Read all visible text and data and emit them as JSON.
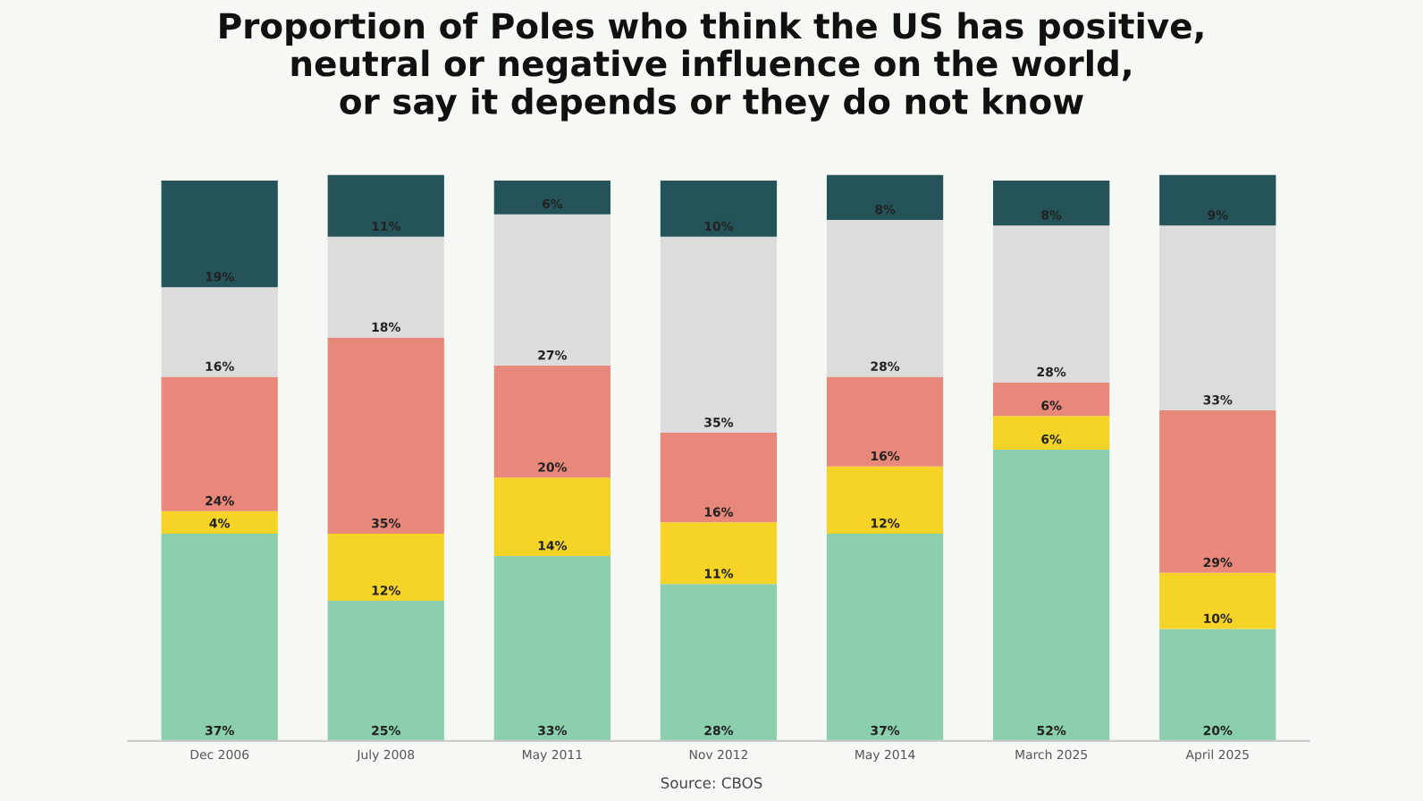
{
  "chart_data": {
    "type": "bar",
    "stacked": true,
    "title": "Proportion of Poles who think the US has positive,\nneutral or negative influence on the world,\nor say it depends or they do not know",
    "categories": [
      "Dec 2006",
      "July 2008",
      "May 2011",
      "Nov 2012",
      "May 2014",
      "March 2025",
      "April 2025"
    ],
    "series": [
      {
        "color": "#8ccfae",
        "values": [
          37,
          25,
          33,
          28,
          37,
          52,
          20
        ],
        "value_labels": [
          "37%",
          "25%",
          "33%",
          "28%",
          "37%",
          "52%",
          "20%"
        ]
      },
      {
        "color": "#f5d327",
        "values": [
          4,
          12,
          14,
          11,
          12,
          6,
          10
        ],
        "value_labels": [
          "4%",
          "12%",
          "14%",
          "11%",
          "12%",
          "6%",
          "10%"
        ]
      },
      {
        "color": "#e8887a",
        "values": [
          24,
          35,
          20,
          16,
          16,
          6,
          29
        ],
        "value_labels": [
          "24%",
          "35%",
          "20%",
          "16%",
          "16%",
          "6%",
          "29%"
        ]
      },
      {
        "color": "#dcdcdc",
        "values": [
          16,
          18,
          27,
          35,
          28,
          28,
          33
        ],
        "value_labels": [
          "16%",
          "18%",
          "27%",
          "35%",
          "28%",
          "28%",
          "33%"
        ]
      },
      {
        "color": "#24545a",
        "values": [
          19,
          11,
          6,
          10,
          8,
          8,
          9
        ],
        "value_labels": [
          "19%",
          "11%",
          "6%",
          "10%",
          "8%",
          "8%",
          "9%"
        ]
      }
    ],
    "annotations": [
      "Source: CBOS"
    ]
  }
}
